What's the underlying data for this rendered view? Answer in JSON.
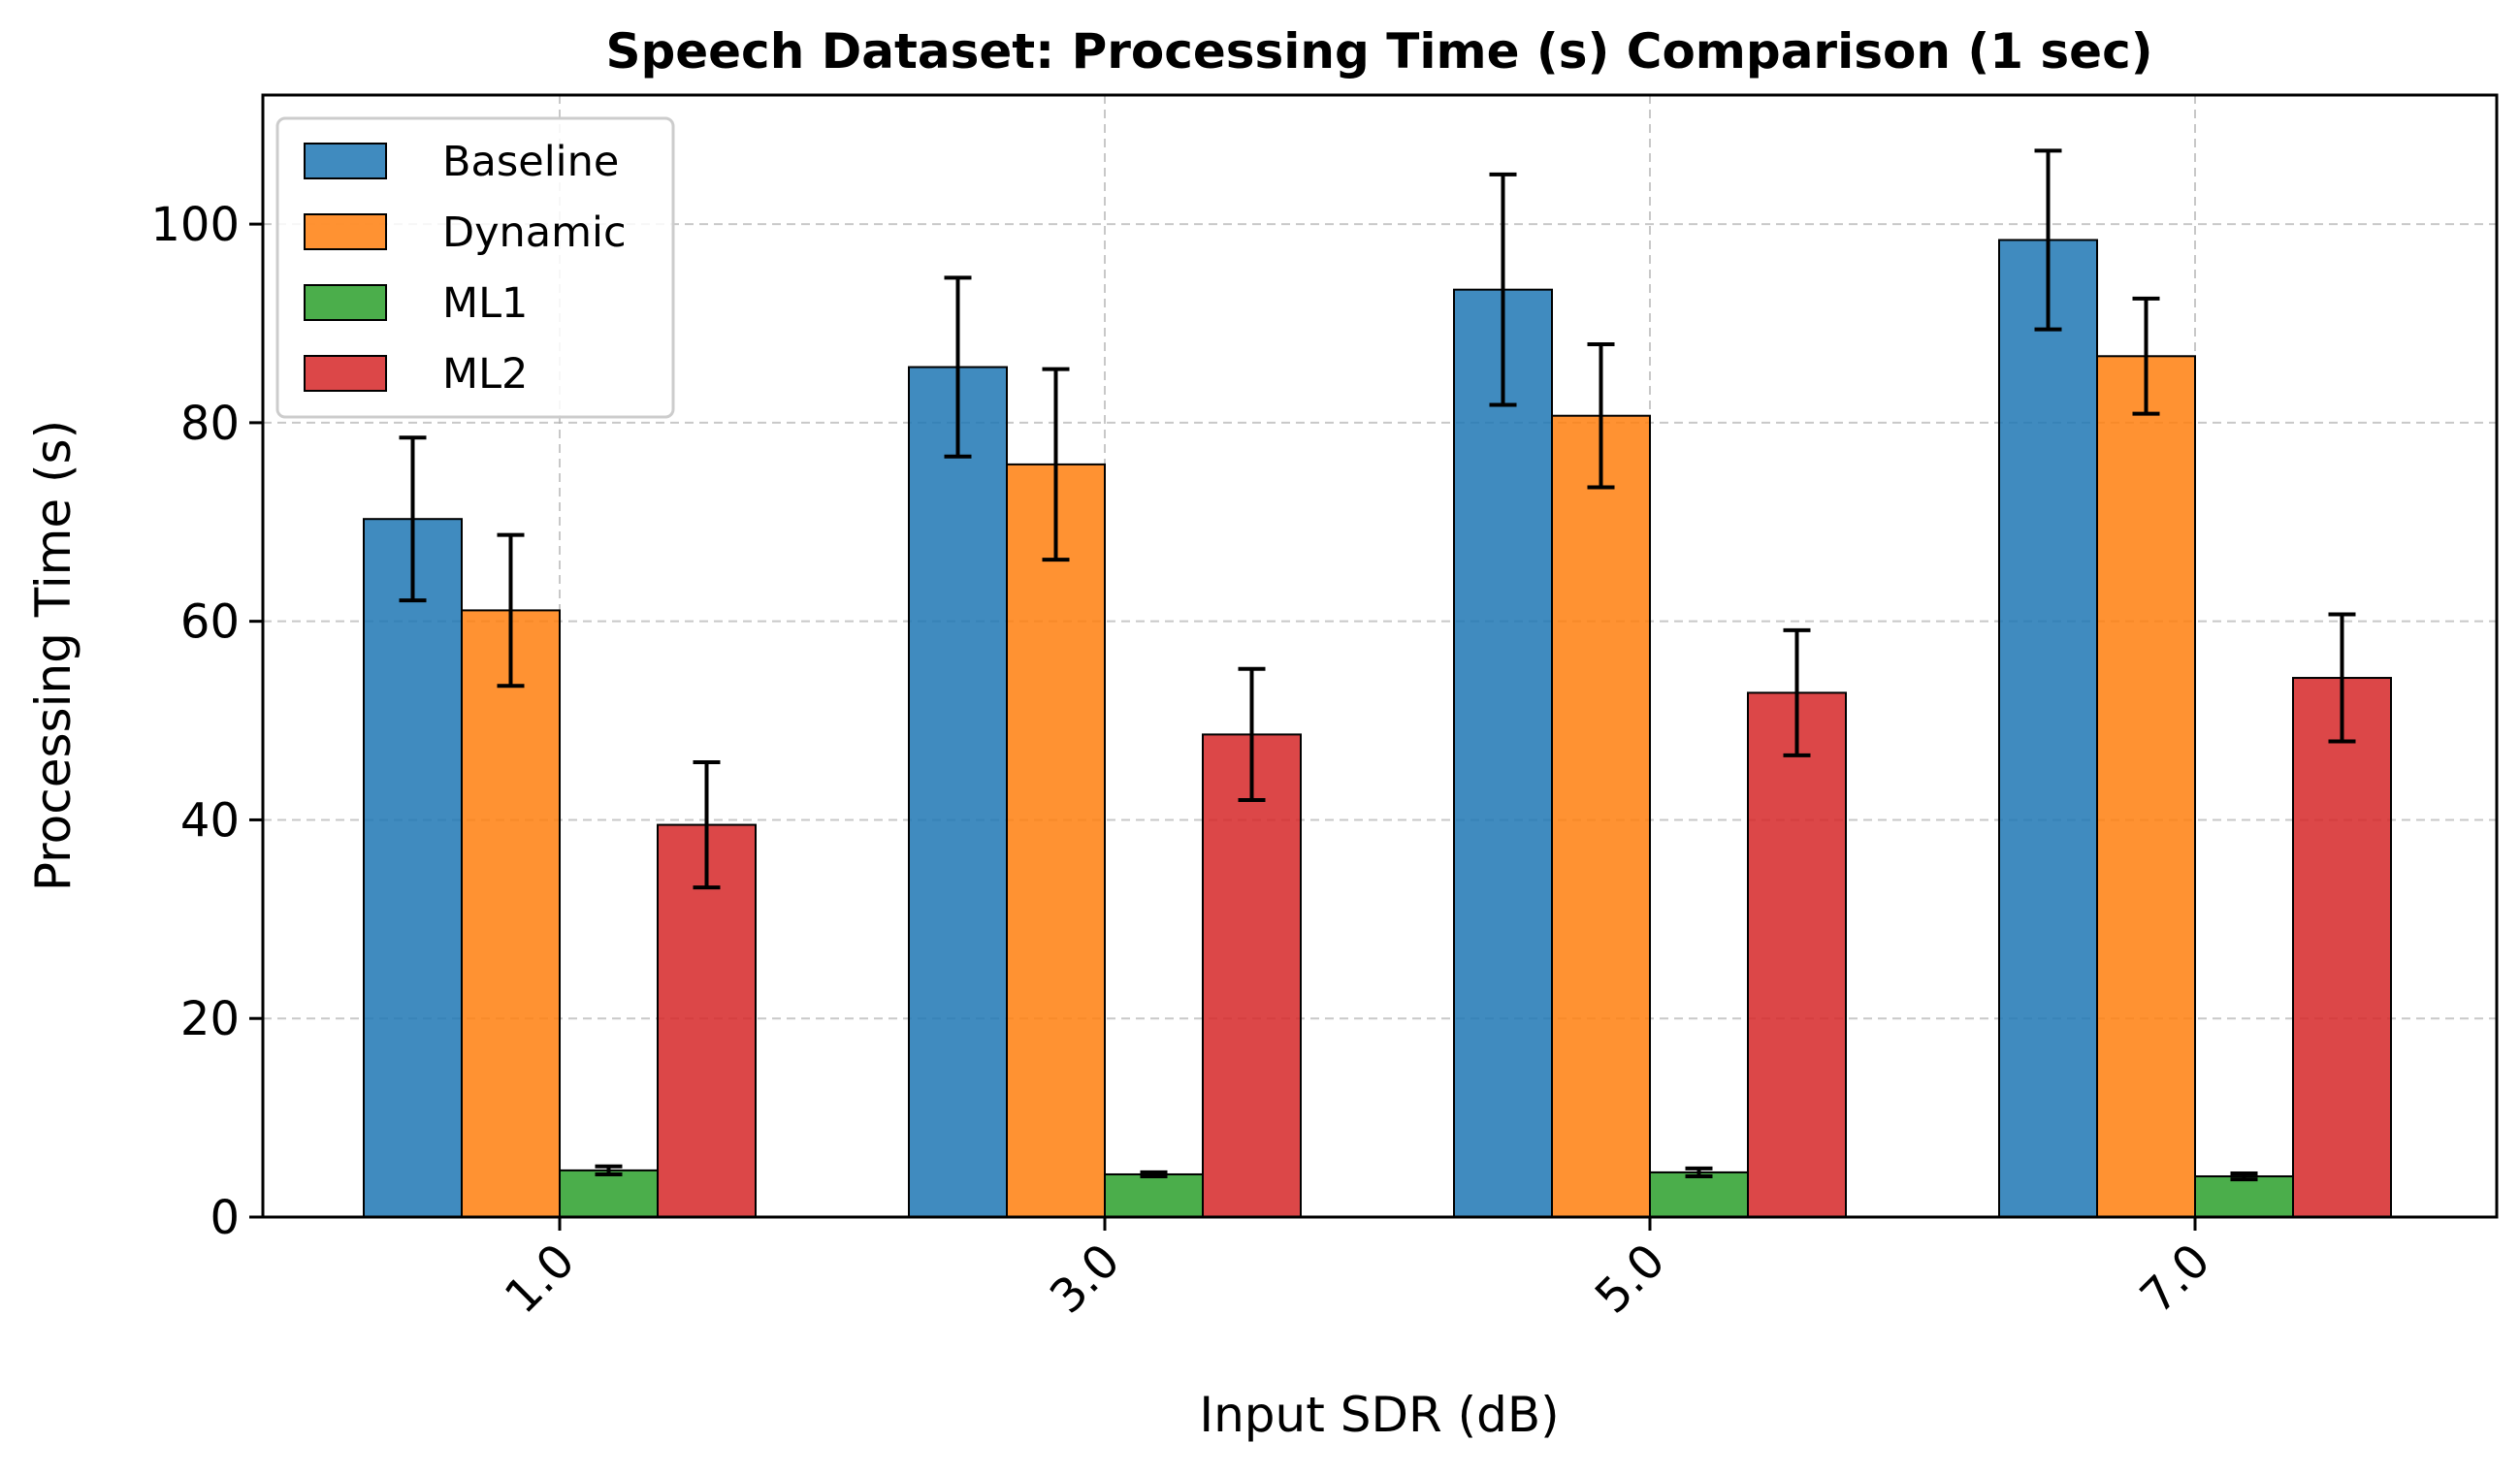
{
  "chart_data": {
    "type": "bar",
    "title": "Speech Dataset: Processing Time (s) Comparison (1 sec)",
    "xlabel": "Input SDR (dB)",
    "ylabel": "Processing Time (s)",
    "categories": [
      "1.0",
      "3.0",
      "5.0",
      "7.0"
    ],
    "ylim": [
      0,
      113
    ],
    "yticks": [
      0,
      20,
      40,
      60,
      80,
      100
    ],
    "ytick_labels": [
      "0",
      "20",
      "40",
      "60",
      "80",
      "100"
    ],
    "grid": true,
    "legend_position": "top-left",
    "series": [
      {
        "name": "Baseline",
        "color": "#1f77b4",
        "values": [
          70.3,
          85.6,
          93.4,
          98.4
        ],
        "errors": [
          8.2,
          9.0,
          11.6,
          9.0
        ]
      },
      {
        "name": "Dynamic",
        "color": "#ff7f0e",
        "values": [
          61.1,
          75.8,
          80.7,
          86.7
        ],
        "errors": [
          7.6,
          9.6,
          7.2,
          5.8
        ]
      },
      {
        "name": "ML1",
        "color": "#2ca02c",
        "values": [
          4.7,
          4.3,
          4.5,
          4.1
        ],
        "errors": [
          0.4,
          0.2,
          0.4,
          0.3
        ]
      },
      {
        "name": "ML2",
        "color": "#d62728",
        "values": [
          39.5,
          48.6,
          52.8,
          54.3
        ],
        "errors": [
          6.3,
          6.6,
          6.3,
          6.4
        ]
      }
    ]
  }
}
